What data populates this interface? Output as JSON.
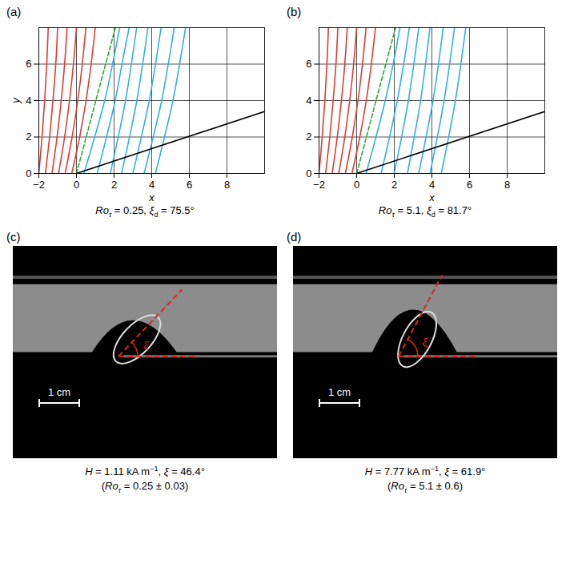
{
  "chart_data": [
    {
      "type": "line",
      "panel": "(a)",
      "x_label": "x",
      "y_label": "y",
      "xlim": [
        -2,
        10
      ],
      "ylim": [
        0,
        8
      ],
      "xticks": [
        -2,
        0,
        2,
        4,
        6,
        8
      ],
      "yticks": [
        0,
        2,
        4,
        6
      ],
      "grid": true,
      "caption": [
        {
          "t": "Ro",
          "i": true
        },
        {
          "t": "τ",
          "i": true,
          "sub": true
        },
        {
          "t": " = 0.25, "
        },
        {
          "t": "ξ",
          "i": true
        },
        {
          "t": "d",
          "sub": true
        },
        {
          "t": " = 75.5°"
        }
      ],
      "series": [
        {
          "color": "#e5392f",
          "line_style": "solid",
          "x": [
            -2,
            -1.83,
            -1.69,
            -1.58,
            -1.5
          ],
          "y": [
            0,
            2,
            4,
            6,
            8
          ]
        },
        {
          "color": "#e5392f",
          "line_style": "solid",
          "x": [
            -1.65,
            -1.43,
            -1.25,
            -1.1,
            -1.0
          ],
          "y": [
            0,
            2,
            4,
            6,
            8
          ]
        },
        {
          "color": "#e5392f",
          "line_style": "solid",
          "x": [
            -1.3,
            -1.03,
            -0.81,
            -0.63,
            -0.5
          ],
          "y": [
            0,
            2,
            4,
            6,
            8
          ]
        },
        {
          "color": "#e5392f",
          "line_style": "solid",
          "x": [
            -0.95,
            -0.63,
            -0.37,
            -0.16,
            0.0
          ],
          "y": [
            0,
            2,
            4,
            6,
            8
          ]
        },
        {
          "color": "#e5392f",
          "line_style": "solid",
          "x": [
            -0.6,
            -0.23,
            0.07,
            0.31,
            0.5
          ],
          "y": [
            0,
            2,
            4,
            6,
            8
          ]
        },
        {
          "color": "#e5392f",
          "line_style": "solid",
          "x": [
            -0.25,
            0.17,
            0.51,
            0.78,
            1.0
          ],
          "y": [
            0,
            2,
            4,
            6,
            8
          ]
        },
        {
          "color": "#2eb3e6",
          "line_style": "solid",
          "x": [
            0.4,
            0.97,
            1.5,
            1.92,
            2.3
          ],
          "y": [
            0,
            2,
            4,
            6,
            8
          ]
        },
        {
          "color": "#2eb3e6",
          "line_style": "solid",
          "x": [
            1.1,
            1.6,
            2.06,
            2.42,
            2.8
          ],
          "y": [
            0,
            2,
            4,
            6,
            8
          ]
        },
        {
          "color": "#2eb3e6",
          "line_style": "solid",
          "x": [
            1.8,
            2.22,
            2.61,
            2.92,
            3.2
          ],
          "y": [
            0,
            2,
            4,
            6,
            8
          ]
        },
        {
          "color": "#2eb3e6",
          "line_style": "solid",
          "x": [
            2.4,
            2.82,
            3.21,
            3.52,
            3.8
          ],
          "y": [
            0,
            2,
            4,
            6,
            8
          ]
        },
        {
          "color": "#2eb3e6",
          "line_style": "solid",
          "x": [
            3.0,
            3.45,
            3.87,
            4.2,
            4.5
          ],
          "y": [
            0,
            2,
            4,
            6,
            8
          ]
        },
        {
          "color": "#2eb3e6",
          "line_style": "solid",
          "x": [
            3.6,
            4.08,
            4.53,
            4.88,
            5.2
          ],
          "y": [
            0,
            2,
            4,
            6,
            8
          ]
        },
        {
          "color": "#2eb3e6",
          "line_style": "solid",
          "x": [
            4.2,
            4.68,
            5.13,
            5.48,
            5.8
          ],
          "y": [
            0,
            2,
            4,
            6,
            8
          ]
        },
        {
          "color": "#2aa836",
          "line_style": "dashed",
          "x": [
            0,
            0.52,
            1.03,
            1.55,
            2.07
          ],
          "y": [
            0,
            2,
            4,
            6,
            8
          ]
        },
        {
          "color": "#000000",
          "line_style": "solid",
          "x": [
            0,
            10
          ],
          "y": [
            0,
            3.4
          ]
        }
      ]
    },
    {
      "type": "line",
      "panel": "(b)",
      "x_label": "x",
      "xlim": [
        -2,
        10
      ],
      "ylim": [
        0,
        8
      ],
      "xticks": [
        -2,
        0,
        2,
        4,
        6,
        8
      ],
      "yticks": [
        0,
        2,
        4,
        6
      ],
      "grid": true,
      "caption": [
        {
          "t": "Ro",
          "i": true
        },
        {
          "t": "τ",
          "i": true,
          "sub": true
        },
        {
          "t": " = 5.1, "
        },
        {
          "t": "ξ",
          "i": true
        },
        {
          "t": "d",
          "sub": true
        },
        {
          "t": " = 81.7°"
        }
      ],
      "series": [
        {
          "color": "#e5392f",
          "line_style": "solid",
          "x": [
            -2,
            -1.83,
            -1.69,
            -1.58,
            -1.5
          ],
          "y": [
            0,
            2,
            4,
            6,
            8
          ]
        },
        {
          "color": "#e5392f",
          "line_style": "solid",
          "x": [
            -1.65,
            -1.43,
            -1.25,
            -1.1,
            -1.0
          ],
          "y": [
            0,
            2,
            4,
            6,
            8
          ]
        },
        {
          "color": "#e5392f",
          "line_style": "solid",
          "x": [
            -1.3,
            -1.03,
            -0.81,
            -0.63,
            -0.5
          ],
          "y": [
            0,
            2,
            4,
            6,
            8
          ]
        },
        {
          "color": "#e5392f",
          "line_style": "solid",
          "x": [
            -0.95,
            -0.63,
            -0.37,
            -0.16,
            0.0
          ],
          "y": [
            0,
            2,
            4,
            6,
            8
          ]
        },
        {
          "color": "#e5392f",
          "line_style": "solid",
          "x": [
            -0.6,
            -0.23,
            0.07,
            0.31,
            0.5
          ],
          "y": [
            0,
            2,
            4,
            6,
            8
          ]
        },
        {
          "color": "#e5392f",
          "line_style": "solid",
          "x": [
            -0.25,
            0.17,
            0.51,
            0.78,
            1.0
          ],
          "y": [
            0,
            2,
            4,
            6,
            8
          ]
        },
        {
          "color": "#2eb3e6",
          "line_style": "solid",
          "x": [
            0.5,
            1.03,
            1.52,
            1.94,
            2.3
          ],
          "y": [
            0,
            2,
            4,
            6,
            8
          ]
        },
        {
          "color": "#2eb3e6",
          "line_style": "solid",
          "x": [
            1.3,
            1.75,
            2.16,
            2.5,
            2.8
          ],
          "y": [
            0,
            2,
            4,
            6,
            8
          ]
        },
        {
          "color": "#2eb3e6",
          "line_style": "solid",
          "x": [
            2.0,
            2.39,
            2.75,
            3.04,
            3.3
          ],
          "y": [
            0,
            2,
            4,
            6,
            8
          ]
        },
        {
          "color": "#2eb3e6",
          "line_style": "solid",
          "x": [
            2.7,
            3.06,
            3.4,
            3.66,
            3.9
          ],
          "y": [
            0,
            2,
            4,
            6,
            8
          ]
        },
        {
          "color": "#2eb3e6",
          "line_style": "solid",
          "x": [
            3.3,
            3.69,
            4.06,
            4.35,
            4.6
          ],
          "y": [
            0,
            2,
            4,
            6,
            8
          ]
        },
        {
          "color": "#2eb3e6",
          "line_style": "solid",
          "x": [
            3.9,
            4.29,
            4.65,
            4.94,
            5.2
          ],
          "y": [
            0,
            2,
            4,
            6,
            8
          ]
        },
        {
          "color": "#2eb3e6",
          "line_style": "solid",
          "x": [
            4.5,
            4.89,
            5.25,
            5.54,
            5.8
          ],
          "y": [
            0,
            2,
            4,
            6,
            8
          ]
        },
        {
          "color": "#2aa836",
          "line_style": "dashed",
          "x": [
            0,
            0.52,
            1.03,
            1.55,
            2.07
          ],
          "y": [
            0,
            2,
            4,
            6,
            8
          ]
        },
        {
          "color": "#000000",
          "line_style": "solid",
          "x": [
            0,
            10
          ],
          "y": [
            0,
            3.4
          ]
        }
      ]
    }
  ],
  "photos": [
    {
      "panel": "(c)",
      "scale_bar": "1 cm",
      "angle_label": "ξ",
      "xi": 46.4,
      "caption": [
        [
          {
            "t": "H",
            "i": true
          },
          {
            "t": " = 1.11 kA m"
          },
          {
            "t": "−1",
            "sup": true
          },
          {
            "t": ", "
          },
          {
            "t": "ξ",
            "i": true
          },
          {
            "t": " = 46.4°"
          }
        ],
        [
          {
            "t": "("
          },
          {
            "t": "Ro",
            "i": true
          },
          {
            "t": "τ",
            "i": true,
            "sub": true
          },
          {
            "t": " = 0.25 ± 0.03)"
          }
        ]
      ]
    },
    {
      "panel": "(d)",
      "scale_bar": "1 cm",
      "angle_label": "ξ",
      "xi": 61.9,
      "caption": [
        [
          {
            "t": "H",
            "i": true
          },
          {
            "t": " = 7.77 kA m"
          },
          {
            "t": "−1",
            "sup": true
          },
          {
            "t": ", "
          },
          {
            "t": "ξ",
            "i": true
          },
          {
            "t": " = 61.9°"
          }
        ],
        [
          {
            "t": "("
          },
          {
            "t": "Ro",
            "i": true
          },
          {
            "t": "τ",
            "i": true,
            "sub": true
          },
          {
            "t": " = 5.1 ± 0.6)"
          }
        ]
      ]
    }
  ]
}
